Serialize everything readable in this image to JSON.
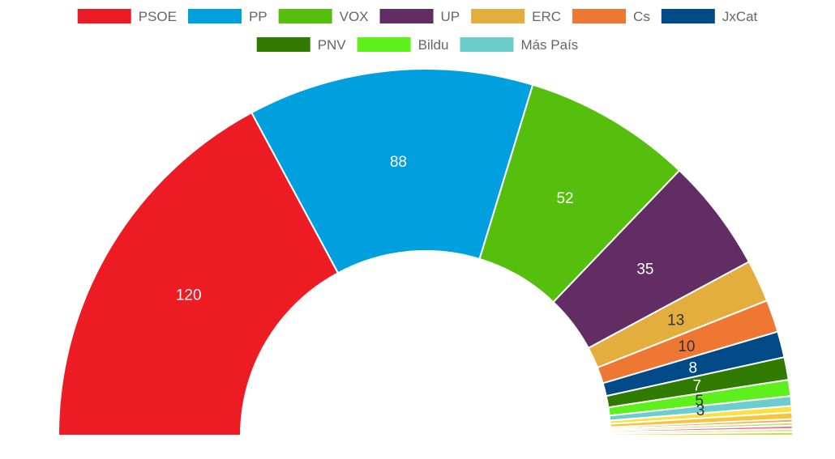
{
  "chart_data": {
    "type": "half-doughnut",
    "title": "",
    "total_seats": 350,
    "legend_position": "top",
    "series": [
      {
        "name": "PSOE",
        "value": 120,
        "color": "#ed1c24",
        "label_color": "#ffffff",
        "show_label": true
      },
      {
        "name": "PP",
        "value": 88,
        "color": "#00a0df",
        "label_color": "#ffffff",
        "show_label": true
      },
      {
        "name": "VOX",
        "value": 52,
        "color": "#56bf0d",
        "label_color": "#ffffff",
        "show_label": true
      },
      {
        "name": "UP",
        "value": 35,
        "color": "#612d62",
        "label_color": "#ffffff",
        "show_label": true
      },
      {
        "name": "ERC",
        "value": 13,
        "color": "#e3ae3e",
        "label_color": "#333333",
        "show_label": true
      },
      {
        "name": "Cs",
        "value": 10,
        "color": "#ee7733",
        "label_color": "#333333",
        "show_label": true
      },
      {
        "name": "JxCat",
        "value": 8,
        "color": "#004b87",
        "label_color": "#ffffff",
        "show_label": true
      },
      {
        "name": "PNV",
        "value": 7,
        "color": "#317a00",
        "label_color": "#ffffff",
        "show_label": true
      },
      {
        "name": "Bildu",
        "value": 5,
        "color": "#5ef01d",
        "label_color": "#333333",
        "show_label": true
      },
      {
        "name": "Más País",
        "value": 3,
        "color": "#6ccdcd",
        "label_color": "#333333",
        "show_label": true
      },
      {
        "name": "",
        "value": 2,
        "color": "#fbe13e",
        "label_color": "#333333",
        "show_label": false
      },
      {
        "name": "",
        "value": 2,
        "color": "#f6c43e",
        "label_color": "#333333",
        "show_label": false
      },
      {
        "name": "",
        "value": 1,
        "color": "#f7a84f",
        "label_color": "#333333",
        "show_label": false
      },
      {
        "name": "",
        "value": 1,
        "color": "#c3e47a",
        "label_color": "#333333",
        "show_label": false
      },
      {
        "name": "",
        "value": 1,
        "color": "#ff6f91",
        "label_color": "#333333",
        "show_label": false
      },
      {
        "name": "",
        "value": 1,
        "color": "#e7e78f",
        "label_color": "#333333",
        "show_label": false
      },
      {
        "name": "",
        "value": 1,
        "color": "#c9dd45",
        "label_color": "#333333",
        "show_label": false
      }
    ]
  }
}
